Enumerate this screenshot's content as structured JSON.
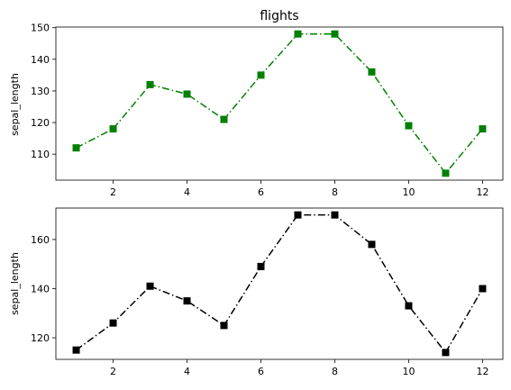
{
  "chart_data": [
    {
      "type": "line",
      "title": "flights",
      "xlabel": "",
      "ylabel": "sepal_length",
      "x": [
        1,
        2,
        3,
        4,
        5,
        6,
        7,
        8,
        9,
        10,
        11,
        12
      ],
      "xlim": [
        0.45,
        12.55
      ],
      "ylim": [
        101.8,
        150.2
      ],
      "xticks": [
        2,
        4,
        6,
        8,
        10,
        12
      ],
      "yticks": [
        110,
        120,
        130,
        140,
        150
      ],
      "grid": false,
      "series": [
        {
          "values": [
            112,
            118,
            132,
            129,
            121,
            135,
            148,
            148,
            136,
            119,
            104,
            118
          ],
          "color": "#008000",
          "marker": "square",
          "linestyle": "dash-dot"
        }
      ]
    },
    {
      "type": "line",
      "title": "",
      "xlabel": "",
      "ylabel": "sepal_length",
      "x": [
        1,
        2,
        3,
        4,
        5,
        6,
        7,
        8,
        9,
        10,
        11,
        12
      ],
      "xlim": [
        0.45,
        12.55
      ],
      "ylim": [
        111.2,
        172.8
      ],
      "xticks": [
        2,
        4,
        6,
        8,
        10,
        12
      ],
      "yticks": [
        120,
        140,
        160
      ],
      "grid": false,
      "series": [
        {
          "values": [
            115,
            126,
            141,
            135,
            125,
            149,
            170,
            170,
            158,
            133,
            114,
            140
          ],
          "color": "#000000",
          "marker": "square",
          "linestyle": "dash-dot"
        }
      ]
    }
  ]
}
